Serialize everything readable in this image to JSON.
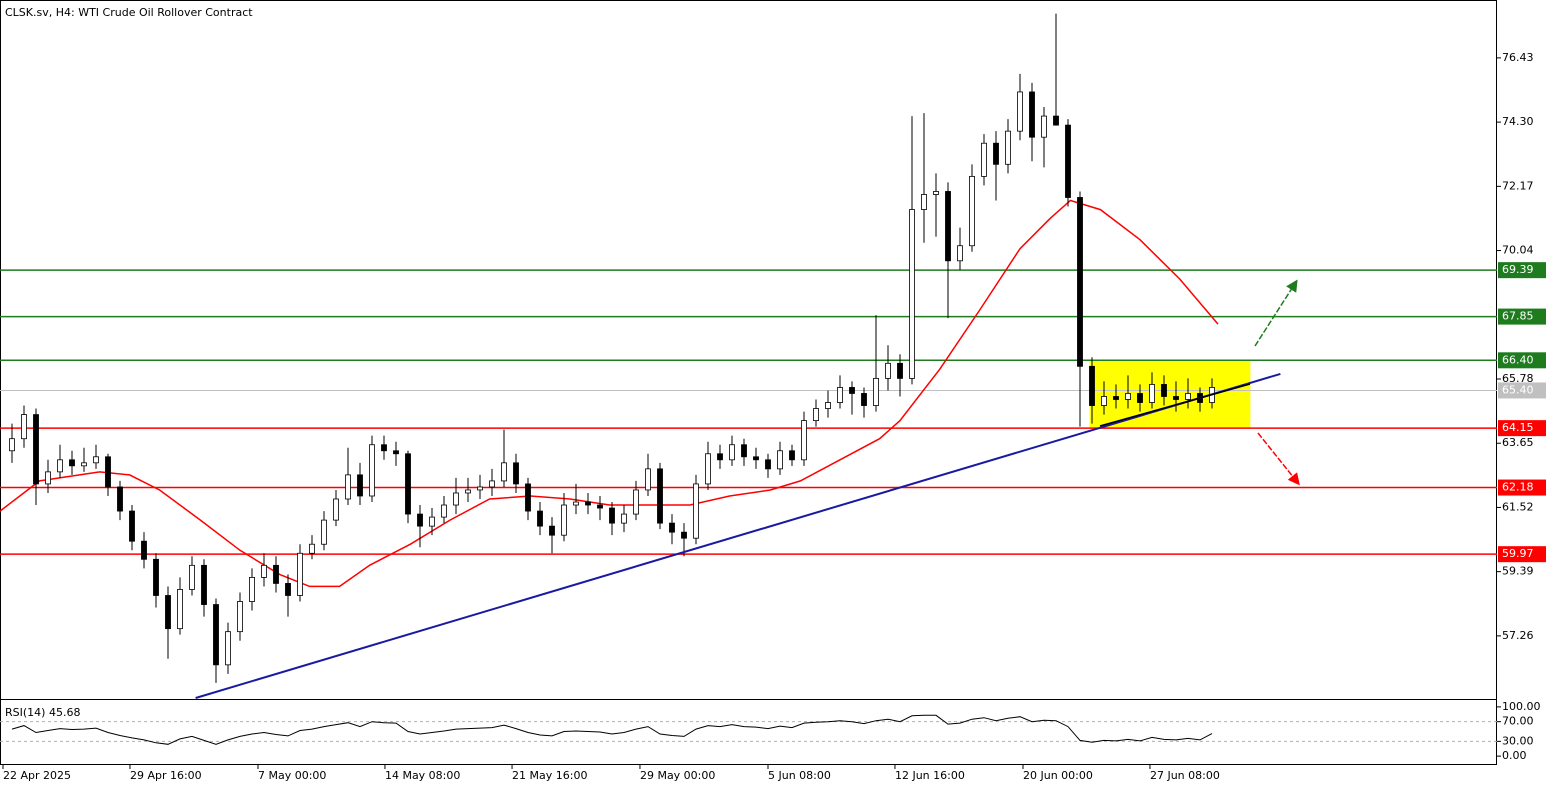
{
  "chart_data": [
    {
      "type": "candlestick",
      "title": "CLSK.sv, H4:  WTI Crude Oil Rollover Contract",
      "xlim": [
        -1,
        123.75
      ],
      "ylim": [
        55.2,
        78.35
      ],
      "xticks": [
        {
          "value": -0.75,
          "label": "22 Apr 2025"
        },
        {
          "value": 9.83,
          "label": "29 Apr 16:00"
        },
        {
          "value": 20.5,
          "label": "7 May 00:00"
        },
        {
          "value": 31.08,
          "label": "14 May 08:00"
        },
        {
          "value": 41.67,
          "label": "21 May 16:00"
        },
        {
          "value": 52.33,
          "label": "29 May 00:00"
        },
        {
          "value": 63,
          "label": "5 Jun 08:00"
        },
        {
          "value": 73.58,
          "label": "12 Jun 16:00"
        },
        {
          "value": 84.25,
          "label": "20 Jun 00:00"
        },
        {
          "value": 94.83,
          "label": "27 Jun 08:00"
        }
      ],
      "yticks": [
        76.43,
        {
          "value": 74.3,
          "label": "74.30"
        },
        72.17,
        70.04,
        65.78,
        63.65,
        61.52,
        59.39,
        57.26
      ],
      "ohlc": [
        [
          63.4,
          64.3,
          63.0,
          63.8
        ],
        [
          63.8,
          64.9,
          63.5,
          64.6
        ],
        [
          64.6,
          64.8,
          61.6,
          62.3
        ],
        [
          62.3,
          63.1,
          62.0,
          62.7
        ],
        [
          62.7,
          63.6,
          62.5,
          63.1
        ],
        [
          63.1,
          63.4,
          62.6,
          62.9
        ],
        [
          62.9,
          63.5,
          62.7,
          63.0
        ],
        [
          63.0,
          63.6,
          62.8,
          63.2
        ],
        [
          63.2,
          63.3,
          61.9,
          62.2
        ],
        [
          62.2,
          62.4,
          61.1,
          61.4
        ],
        [
          61.4,
          61.6,
          60.1,
          60.4
        ],
        [
          60.4,
          60.7,
          59.5,
          59.8
        ],
        [
          59.8,
          60.0,
          58.2,
          58.6
        ],
        [
          58.6,
          58.9,
          56.5,
          57.5
        ],
        [
          57.5,
          59.2,
          57.3,
          58.8
        ],
        [
          58.8,
          59.9,
          58.6,
          59.6
        ],
        [
          59.6,
          59.8,
          57.9,
          58.3
        ],
        [
          58.3,
          58.5,
          55.7,
          56.3
        ],
        [
          56.3,
          57.7,
          56.0,
          57.4
        ],
        [
          57.4,
          58.7,
          57.1,
          58.4
        ],
        [
          58.4,
          59.5,
          58.1,
          59.2
        ],
        [
          59.2,
          60.0,
          58.9,
          59.6
        ],
        [
          59.6,
          59.9,
          58.7,
          59.0
        ],
        [
          59.0,
          59.3,
          57.9,
          58.6
        ],
        [
          58.6,
          60.3,
          58.4,
          60.0
        ],
        [
          60.0,
          60.6,
          59.8,
          60.3
        ],
        [
          60.3,
          61.4,
          60.1,
          61.1
        ],
        [
          61.1,
          62.1,
          60.9,
          61.8
        ],
        [
          61.8,
          63.5,
          61.6,
          62.6
        ],
        [
          62.6,
          63.0,
          61.6,
          61.9
        ],
        [
          61.9,
          63.9,
          61.7,
          63.6
        ],
        [
          63.6,
          63.9,
          63.1,
          63.4
        ],
        [
          63.4,
          63.7,
          62.9,
          63.3
        ],
        [
          63.3,
          63.4,
          61.0,
          61.3
        ],
        [
          61.3,
          61.6,
          60.2,
          60.9
        ],
        [
          60.9,
          61.5,
          60.6,
          61.2
        ],
        [
          61.2,
          61.9,
          61.0,
          61.6
        ],
        [
          61.6,
          62.5,
          61.3,
          62.0
        ],
        [
          62.0,
          62.5,
          61.7,
          62.1
        ],
        [
          62.1,
          62.6,
          61.8,
          62.2
        ],
        [
          62.2,
          62.8,
          61.9,
          62.4
        ],
        [
          62.4,
          64.1,
          62.2,
          63.0
        ],
        [
          63.0,
          63.3,
          62.0,
          62.3
        ],
        [
          62.3,
          62.5,
          61.1,
          61.4
        ],
        [
          61.4,
          61.7,
          60.6,
          60.9
        ],
        [
          60.9,
          61.2,
          60.0,
          60.6
        ],
        [
          60.6,
          62.0,
          60.4,
          61.6
        ],
        [
          61.6,
          62.3,
          61.3,
          61.7
        ],
        [
          61.7,
          62.0,
          61.3,
          61.6
        ],
        [
          61.6,
          61.9,
          61.1,
          61.5
        ],
        [
          61.5,
          61.7,
          60.6,
          61.0
        ],
        [
          61.0,
          61.6,
          60.7,
          61.3
        ],
        [
          61.3,
          62.4,
          61.1,
          62.1
        ],
        [
          62.1,
          63.3,
          61.9,
          62.8
        ],
        [
          62.8,
          63.0,
          60.8,
          61.0
        ],
        [
          61.0,
          61.3,
          60.3,
          60.7
        ],
        [
          60.7,
          61.0,
          59.9,
          60.5
        ],
        [
          60.5,
          62.6,
          60.3,
          62.3
        ],
        [
          62.3,
          63.7,
          62.1,
          63.3
        ],
        [
          63.3,
          63.6,
          62.8,
          63.1
        ],
        [
          63.1,
          63.9,
          62.9,
          63.6
        ],
        [
          63.6,
          63.8,
          62.9,
          63.2
        ],
        [
          63.2,
          63.5,
          62.8,
          63.1
        ],
        [
          63.1,
          63.3,
          62.5,
          62.8
        ],
        [
          62.8,
          63.7,
          62.6,
          63.4
        ],
        [
          63.4,
          63.6,
          62.9,
          63.1
        ],
        [
          63.1,
          64.7,
          62.9,
          64.4
        ],
        [
          64.4,
          65.1,
          64.2,
          64.8
        ],
        [
          64.8,
          65.4,
          64.5,
          65.0
        ],
        [
          65.0,
          65.9,
          64.8,
          65.5
        ],
        [
          65.5,
          65.7,
          64.6,
          65.3
        ],
        [
          65.3,
          65.5,
          64.5,
          64.9
        ],
        [
          64.9,
          67.9,
          64.7,
          65.8
        ],
        [
          65.8,
          66.9,
          65.4,
          66.3
        ],
        [
          66.3,
          66.6,
          65.2,
          65.8
        ],
        [
          65.8,
          74.5,
          65.6,
          71.4
        ],
        [
          71.4,
          74.6,
          70.3,
          71.9
        ],
        [
          71.9,
          72.6,
          70.5,
          72.0
        ],
        [
          72.0,
          72.3,
          67.8,
          69.7
        ],
        [
          69.7,
          70.8,
          69.4,
          70.2
        ],
        [
          70.2,
          72.9,
          70.0,
          72.5
        ],
        [
          72.5,
          73.9,
          72.2,
          73.6
        ],
        [
          73.6,
          74.0,
          71.7,
          72.9
        ],
        [
          72.9,
          74.4,
          72.6,
          74.0
        ],
        [
          74.0,
          75.9,
          73.7,
          75.3
        ],
        [
          75.3,
          75.6,
          73.0,
          73.8
        ],
        [
          73.8,
          74.8,
          72.8,
          74.5
        ],
        [
          74.5,
          77.9,
          74.2,
          74.2
        ],
        [
          74.2,
          74.4,
          71.5,
          71.8
        ],
        [
          71.8,
          72.0,
          64.2,
          66.2
        ],
        [
          66.2,
          66.5,
          64.3,
          64.9
        ],
        [
          64.9,
          65.7,
          64.6,
          65.2
        ],
        [
          65.2,
          65.6,
          64.8,
          65.1
        ],
        [
          65.1,
          65.9,
          64.8,
          65.3
        ],
        [
          65.3,
          65.6,
          64.7,
          65.0
        ],
        [
          65.0,
          66.0,
          64.8,
          65.6
        ],
        [
          65.6,
          65.9,
          64.9,
          65.2
        ],
        [
          65.2,
          65.7,
          64.7,
          65.1
        ],
        [
          65.1,
          65.8,
          64.8,
          65.3
        ],
        [
          65.3,
          65.5,
          64.7,
          65.0
        ],
        [
          65.0,
          65.8,
          64.8,
          65.5
        ]
      ],
      "ma": {
        "color": "#ff0000",
        "x": [
          -1.0,
          2.3,
          7.3,
          9.8,
          12.3,
          15.7,
          19.0,
          22.3,
          24.8,
          27.3,
          29.8,
          33.2,
          36.5,
          39.8,
          43.2,
          46.5,
          49.8,
          53.2,
          56.5,
          59.8,
          63.2,
          65.7,
          69.0,
          72.3,
          74.0,
          77.3,
          80.7,
          84.0,
          86.5,
          88.2,
          90.7,
          94.0,
          97.3,
          100.5
        ],
        "values": [
          61.4,
          62.4,
          62.7,
          62.6,
          62.1,
          61.1,
          60.1,
          59.3,
          58.9,
          58.9,
          59.6,
          60.3,
          61.1,
          61.8,
          61.9,
          61.8,
          61.6,
          61.6,
          61.6,
          61.9,
          62.1,
          62.4,
          63.1,
          63.8,
          64.4,
          66.1,
          68.1,
          70.1,
          71.1,
          71.7,
          71.4,
          70.4,
          69.1,
          67.6
        ]
      },
      "trendline": {
        "color": "#1a1aa0",
        "x": [
          15.3,
          105.7
        ],
        "values": [
          55.2,
          65.95
        ]
      },
      "zone": {
        "color": "#ffff00",
        "x": [
          89.8,
          103.2
        ],
        "y": [
          64.15,
          66.4
        ]
      },
      "levels": [
        {
          "value": 69.39,
          "color": "#1e7b1e"
        },
        {
          "value": 67.85,
          "color": "#1e7b1e"
        },
        {
          "value": 66.4,
          "label": "66.40",
          "color": "#1e7b1e"
        },
        {
          "value": 64.15,
          "color": "#ff0000"
        },
        {
          "value": 62.18,
          "color": "#ff0000"
        },
        {
          "value": 59.97,
          "color": "#ff0000"
        }
      ],
      "current_price": {
        "value": 65.4,
        "label": "65.40",
        "color": "#c0c0c0"
      }
    },
    {
      "type": "line",
      "title": "RSI(14) 45.68",
      "color": "#000000",
      "ylim": [
        -18,
        114
      ],
      "yticks": [
        {
          "value": 100,
          "label": "100.00"
        },
        {
          "value": 70,
          "label": "70.00"
        },
        {
          "value": 30,
          "label": "30.00"
        },
        {
          "value": 0,
          "label": "0.00"
        }
      ],
      "levels": [
        70,
        30
      ],
      "values": [
        55,
        62,
        48,
        52,
        56,
        54,
        55,
        57,
        48,
        42,
        37,
        33,
        27,
        24,
        35,
        40,
        32,
        24,
        33,
        40,
        45,
        48,
        44,
        41,
        52,
        55,
        60,
        64,
        68,
        60,
        70,
        68,
        67,
        50,
        45,
        48,
        51,
        55,
        56,
        57,
        58,
        63,
        56,
        48,
        43,
        41,
        50,
        51,
        50,
        49,
        45,
        48,
        55,
        60,
        45,
        42,
        40,
        55,
        62,
        60,
        64,
        60,
        59,
        56,
        61,
        58,
        67,
        69,
        70,
        72,
        70,
        66,
        72,
        75,
        70,
        82,
        83,
        83,
        65,
        67,
        75,
        78,
        72,
        77,
        80,
        70,
        73,
        72,
        60,
        32,
        28,
        32,
        31,
        34,
        31,
        38,
        34,
        33,
        36,
        33,
        45.68
      ]
    }
  ]
}
